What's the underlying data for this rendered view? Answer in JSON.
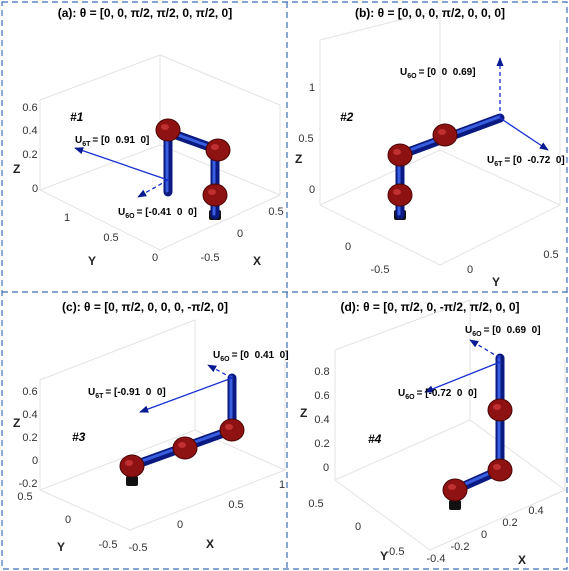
{
  "panels": [
    {
      "title": "(a): θ = [0, 0, π/2, π/2, 0, π/2, 0]",
      "tag": "#1",
      "annotations": [
        {
          "symbol": "U",
          "sub": "6T",
          "text": "= [0  0.91  0]"
        },
        {
          "symbol": "U",
          "sub": "6O",
          "text": "= [-0.41  0  0]"
        }
      ],
      "axes": {
        "z": {
          "label": "Z",
          "ticks": [
            "0.6",
            "0.4",
            "0.2",
            "0"
          ]
        },
        "y": {
          "label": "Y",
          "ticks": [
            "1",
            "0.5",
            "0"
          ]
        },
        "x": {
          "label": "X",
          "ticks": [
            "-0.5",
            "0",
            "0.5"
          ]
        }
      }
    },
    {
      "title": "(b): θ = [0, 0, 0, π/2, 0, 0, 0]",
      "tag": "#2",
      "annotations": [
        {
          "symbol": "U",
          "sub": "6O",
          "text": "= [0  0  0.69]"
        },
        {
          "symbol": "U",
          "sub": "6T",
          "text": "= [0  -0.72  0]"
        }
      ],
      "axes": {
        "z": {
          "label": "Z",
          "ticks": [
            "1",
            "0.5",
            "0"
          ]
        },
        "y": {
          "label": "Y",
          "ticks": [
            "0",
            "-0.5"
          ]
        },
        "x": {
          "label": "X",
          "ticks": [
            "0",
            "0.5"
          ]
        }
      }
    },
    {
      "title": "(c): θ = [0, π/2, 0, 0, 0, -π/2, 0]",
      "tag": "#3",
      "annotations": [
        {
          "symbol": "U",
          "sub": "6O",
          "text": "= [0  0.41  0]"
        },
        {
          "symbol": "U",
          "sub": "6T",
          "text": "= [-0.91  0  0]"
        }
      ],
      "axes": {
        "z": {
          "label": "Z",
          "ticks": [
            "0.6",
            "0.4",
            "0.2",
            "0",
            "-0.2"
          ]
        },
        "y": {
          "label": "Y",
          "ticks": [
            "0.5",
            "0",
            "-0.5"
          ]
        },
        "x": {
          "label": "X",
          "ticks": [
            "-0.5",
            "0",
            "0.5",
            "1"
          ]
        }
      }
    },
    {
      "title": "(d): θ = [0, π/2, 0, -π/2, π/2, 0, 0]",
      "tag": "#4",
      "annotations": [
        {
          "symbol": "U",
          "sub": "6O",
          "text": "= [0  0.69  0]"
        },
        {
          "symbol": "U",
          "sub": "6O",
          "text": "= [-0.72  0  0]"
        }
      ],
      "axes": {
        "z": {
          "label": "Z",
          "ticks": [
            "0.8",
            "0.6",
            "0.4",
            "0.2",
            "0"
          ]
        },
        "y": {
          "label": "Y",
          "ticks": [
            "0.5",
            "0",
            "-0.5"
          ]
        },
        "x": {
          "label": "X",
          "ticks": [
            "-0.4",
            "-0.2",
            "0",
            "0.2",
            "0.4"
          ]
        }
      }
    }
  ]
}
